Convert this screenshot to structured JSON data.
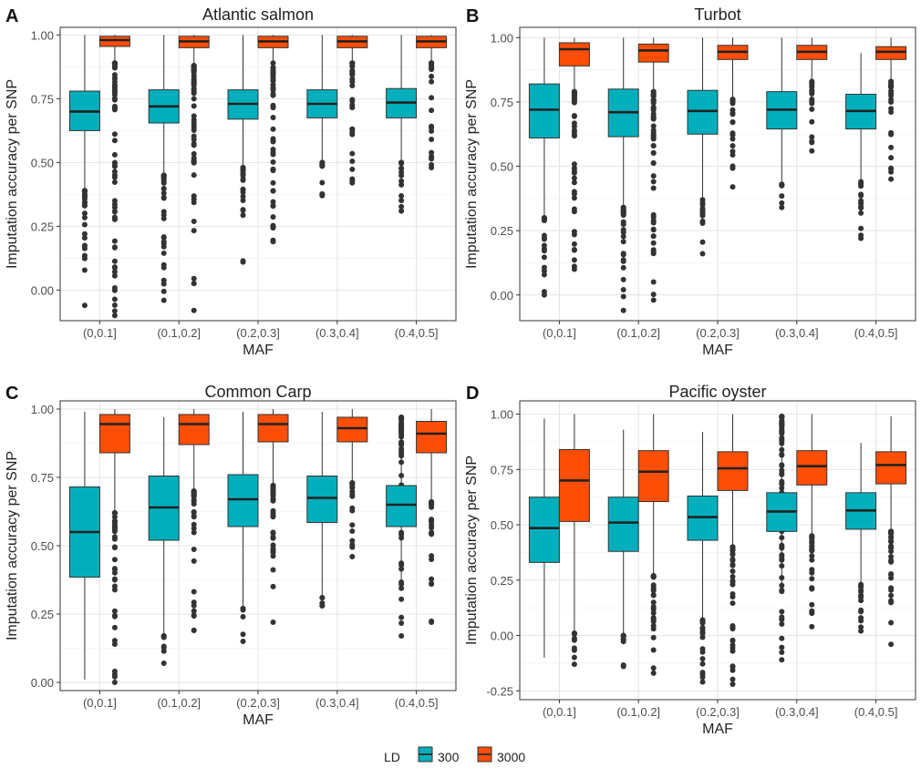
{
  "figure": {
    "y_axis_label": "Imputation accuracy per SNP",
    "x_axis_label": "MAF",
    "legend": {
      "title": "LD",
      "entries": [
        {
          "key": "300",
          "label": "300",
          "color": "#00AFBB"
        },
        {
          "key": "3000",
          "label": "3000",
          "color": "#FC4E07"
        }
      ]
    }
  },
  "chart_data": [
    {
      "type": "box",
      "panel_label": "A",
      "title": "Atlantic salmon",
      "xlabel": "MAF",
      "ylabel": "Imputation accuracy per SNP",
      "categories": [
        "(0,0.1]",
        "(0.1,0.2]",
        "(0.2,0.3]",
        "(0.3,0.4]",
        "(0.4,0.5]"
      ],
      "ylim": [
        -0.12,
        1.03
      ],
      "yticks": [
        0.0,
        0.25,
        0.5,
        0.75,
        1.0
      ],
      "ytick_labels": [
        "0.00",
        "0.25",
        "0.50",
        "0.75",
        "1.00"
      ],
      "series": [
        {
          "name": "300",
          "boxes": [
            {
              "low": 0.4,
              "q1": 0.625,
              "median": 0.7,
              "q3": 0.78,
              "high": 1.0,
              "out_min": -0.06,
              "out_max": 0.39
            },
            {
              "low": 0.45,
              "q1": 0.655,
              "median": 0.72,
              "q3": 0.785,
              "high": 1.0,
              "out_min": -0.04,
              "out_max": 0.45
            },
            {
              "low": 0.48,
              "q1": 0.67,
              "median": 0.73,
              "q3": 0.785,
              "high": 1.0,
              "out_min": 0.11,
              "out_max": 0.48
            },
            {
              "low": 0.51,
              "q1": 0.675,
              "median": 0.73,
              "q3": 0.785,
              "high": 1.0,
              "out_min": 0.37,
              "out_max": 0.5
            },
            {
              "low": 0.51,
              "q1": 0.675,
              "median": 0.735,
              "q3": 0.79,
              "high": 1.0,
              "out_min": 0.31,
              "out_max": 0.5
            }
          ]
        },
        {
          "name": "3000",
          "boxes": [
            {
              "low": 0.9,
              "q1": 0.955,
              "median": 0.98,
              "q3": 0.995,
              "high": 1.0,
              "out_min": -0.1,
              "out_max": 0.89
            },
            {
              "low": 0.88,
              "q1": 0.95,
              "median": 0.975,
              "q3": 0.995,
              "high": 1.0,
              "out_min": -0.08,
              "out_max": 0.88
            },
            {
              "low": 0.89,
              "q1": 0.95,
              "median": 0.975,
              "q3": 0.995,
              "high": 1.0,
              "out_min": 0.19,
              "out_max": 0.89
            },
            {
              "low": 0.89,
              "q1": 0.95,
              "median": 0.975,
              "q3": 0.995,
              "high": 1.0,
              "out_min": 0.42,
              "out_max": 0.89
            },
            {
              "low": 0.89,
              "q1": 0.95,
              "median": 0.975,
              "q3": 0.995,
              "high": 1.0,
              "out_min": 0.48,
              "out_max": 0.89
            }
          ]
        }
      ]
    },
    {
      "type": "box",
      "panel_label": "B",
      "title": "Turbot",
      "xlabel": "MAF",
      "ylabel": "Imputation accuracy per SNP",
      "categories": [
        "(0,0.1]",
        "(0.1,0.2]",
        "(0.2,0.3]",
        "(0.3,0.4]",
        "(0.4,0.5]"
      ],
      "ylim": [
        -0.1,
        1.04
      ],
      "yticks": [
        0.0,
        0.25,
        0.5,
        0.75,
        1.0
      ],
      "ytick_labels": [
        "0.00",
        "0.25",
        "0.50",
        "0.75",
        "1.00"
      ],
      "series": [
        {
          "name": "300",
          "boxes": [
            {
              "low": 0.31,
              "q1": 0.61,
              "median": 0.72,
              "q3": 0.82,
              "high": 1.0,
              "out_min": 0.0,
              "out_max": 0.3
            },
            {
              "low": 0.35,
              "q1": 0.615,
              "median": 0.71,
              "q3": 0.8,
              "high": 1.0,
              "out_min": -0.06,
              "out_max": 0.34
            },
            {
              "low": 0.38,
              "q1": 0.625,
              "median": 0.715,
              "q3": 0.795,
              "high": 1.0,
              "out_min": 0.16,
              "out_max": 0.37
            },
            {
              "low": 0.44,
              "q1": 0.645,
              "median": 0.72,
              "q3": 0.79,
              "high": 1.0,
              "out_min": 0.34,
              "out_max": 0.43
            },
            {
              "low": 0.45,
              "q1": 0.645,
              "median": 0.715,
              "q3": 0.78,
              "high": 0.94,
              "out_min": 0.22,
              "out_max": 0.44
            }
          ]
        },
        {
          "name": "3000",
          "boxes": [
            {
              "low": 0.8,
              "q1": 0.89,
              "median": 0.955,
              "q3": 0.98,
              "high": 1.0,
              "out_min": 0.1,
              "out_max": 0.79
            },
            {
              "low": 0.8,
              "q1": 0.905,
              "median": 0.95,
              "q3": 0.975,
              "high": 1.0,
              "out_min": -0.02,
              "out_max": 0.79
            },
            {
              "low": 0.77,
              "q1": 0.915,
              "median": 0.945,
              "q3": 0.97,
              "high": 1.0,
              "out_min": 0.42,
              "out_max": 0.76
            },
            {
              "low": 0.84,
              "q1": 0.915,
              "median": 0.945,
              "q3": 0.97,
              "high": 1.0,
              "out_min": 0.56,
              "out_max": 0.83
            },
            {
              "low": 0.84,
              "q1": 0.915,
              "median": 0.945,
              "q3": 0.965,
              "high": 1.0,
              "out_min": 0.45,
              "out_max": 0.83
            }
          ]
        }
      ]
    },
    {
      "type": "box",
      "panel_label": "C",
      "title": "Common Carp",
      "xlabel": "MAF",
      "ylabel": "Imputation accuracy per SNP",
      "categories": [
        "(0,0.1]",
        "(0.1,0.2]",
        "(0.2,0.3]",
        "(0.3,0.4]",
        "(0.4,0.5]"
      ],
      "ylim": [
        -0.03,
        1.03
      ],
      "yticks": [
        0.0,
        0.25,
        0.5,
        0.75,
        1.0
      ],
      "ytick_labels": [
        "0.00",
        "0.25",
        "0.50",
        "0.75",
        "1.00"
      ],
      "series": [
        {
          "name": "300",
          "boxes": [
            {
              "low": 0.01,
              "q1": 0.385,
              "median": 0.55,
              "q3": 0.715,
              "high": 0.99,
              "out_min": null,
              "out_max": null
            },
            {
              "low": 0.18,
              "q1": 0.52,
              "median": 0.64,
              "q3": 0.755,
              "high": 0.97,
              "out_min": 0.07,
              "out_max": 0.17
            },
            {
              "low": 0.28,
              "q1": 0.57,
              "median": 0.67,
              "q3": 0.76,
              "high": 0.99,
              "out_min": 0.15,
              "out_max": 0.27
            },
            {
              "low": 0.32,
              "q1": 0.585,
              "median": 0.675,
              "q3": 0.755,
              "high": 0.99,
              "out_min": 0.28,
              "out_max": 0.31
            },
            {
              "low": 0.34,
              "q1": 0.57,
              "median": 0.65,
              "q3": 0.72,
              "high": 0.92,
              "out_min": 0.17,
              "out_max": 0.97
            }
          ]
        },
        {
          "name": "3000",
          "boxes": [
            {
              "low": 0.63,
              "q1": 0.84,
              "median": 0.945,
              "q3": 0.98,
              "high": 1.0,
              "out_min": 0.0,
              "out_max": 0.62
            },
            {
              "low": 0.71,
              "q1": 0.87,
              "median": 0.945,
              "q3": 0.98,
              "high": 1.0,
              "out_min": 0.19,
              "out_max": 0.7
            },
            {
              "low": 0.73,
              "q1": 0.88,
              "median": 0.945,
              "q3": 0.98,
              "high": 1.0,
              "out_min": 0.22,
              "out_max": 0.72
            },
            {
              "low": 0.74,
              "q1": 0.88,
              "median": 0.93,
              "q3": 0.97,
              "high": 1.0,
              "out_min": 0.46,
              "out_max": 0.73
            },
            {
              "low": 0.67,
              "q1": 0.84,
              "median": 0.91,
              "q3": 0.955,
              "high": 1.0,
              "out_min": 0.22,
              "out_max": 0.66
            }
          ]
        }
      ]
    },
    {
      "type": "box",
      "panel_label": "D",
      "title": "Pacific oyster",
      "xlabel": "MAF",
      "ylabel": "Imputation accuracy per SNP",
      "categories": [
        "(0,0.1]",
        "(0.1,0.2]",
        "(0.2,0.3]",
        "(0.3,0.4]",
        "(0.4,0.5]"
      ],
      "ylim": [
        -0.29,
        1.06
      ],
      "yticks": [
        -0.25,
        0.0,
        0.25,
        0.5,
        0.75,
        1.0
      ],
      "ytick_labels": [
        "-0.25",
        "0.00",
        "0.25",
        "0.50",
        "0.75",
        "1.00"
      ],
      "series": [
        {
          "name": "300",
          "boxes": [
            {
              "low": -0.1,
              "q1": 0.33,
              "median": 0.485,
              "q3": 0.625,
              "high": 0.98,
              "out_min": null,
              "out_max": null
            },
            {
              "low": 0.01,
              "q1": 0.38,
              "median": 0.51,
              "q3": 0.625,
              "high": 0.93,
              "out_min": -0.14,
              "out_max": 0.0
            },
            {
              "low": 0.08,
              "q1": 0.43,
              "median": 0.535,
              "q3": 0.63,
              "high": 0.92,
              "out_min": -0.21,
              "out_max": 0.07
            },
            {
              "low": 0.21,
              "q1": 0.47,
              "median": 0.56,
              "q3": 0.645,
              "high": 0.92,
              "out_min": -0.11,
              "out_max": 0.99
            },
            {
              "low": 0.24,
              "q1": 0.48,
              "median": 0.565,
              "q3": 0.645,
              "high": 0.87,
              "out_min": 0.02,
              "out_max": 0.23
            }
          ]
        },
        {
          "name": "3000",
          "boxes": [
            {
              "low": 0.02,
              "q1": 0.515,
              "median": 0.7,
              "q3": 0.84,
              "high": 1.0,
              "out_min": -0.13,
              "out_max": 0.01
            },
            {
              "low": 0.28,
              "q1": 0.605,
              "median": 0.74,
              "q3": 0.835,
              "high": 1.0,
              "out_min": -0.17,
              "out_max": 0.27
            },
            {
              "low": 0.41,
              "q1": 0.655,
              "median": 0.755,
              "q3": 0.83,
              "high": 1.0,
              "out_min": -0.22,
              "out_max": 0.4
            },
            {
              "low": 0.46,
              "q1": 0.68,
              "median": 0.765,
              "q3": 0.835,
              "high": 1.0,
              "out_min": 0.04,
              "out_max": 0.45
            },
            {
              "low": 0.48,
              "q1": 0.685,
              "median": 0.77,
              "q3": 0.83,
              "high": 0.99,
              "out_min": -0.04,
              "out_max": 0.47
            }
          ]
        }
      ]
    }
  ]
}
